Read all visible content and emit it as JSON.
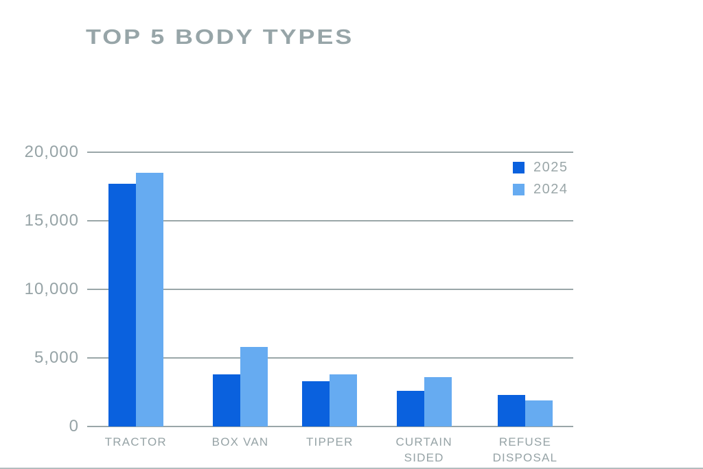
{
  "chart_data": {
    "type": "bar",
    "title": "TOP 5 BODY TYPES",
    "categories": [
      "TRACTOR",
      "BOX VAN",
      "TIPPER",
      "CURTAIN SIDED",
      "REFUSE DISPOSAL"
    ],
    "series": [
      {
        "name": "2025",
        "color": "#0a61de",
        "values": [
          17700,
          3800,
          3300,
          2600,
          2300
        ]
      },
      {
        "name": "2024",
        "color": "#66abf1",
        "values": [
          18500,
          5800,
          3800,
          3600,
          1900
        ]
      }
    ],
    "xlabel": "",
    "ylabel": "",
    "ylim": [
      0,
      20000
    ],
    "yticks": [
      {
        "value": 20000,
        "label": "20,000"
      },
      {
        "value": 15000,
        "label": "15,000"
      },
      {
        "value": 10000,
        "label": "10,000"
      },
      {
        "value": 5000,
        "label": "5,000"
      },
      {
        "value": 0,
        "label": "0"
      }
    ],
    "grid": true,
    "legend_position": "top-right",
    "grid_color": "#9aa6a8",
    "text_color": "#96a3a6",
    "title_color": "#97a5a8"
  }
}
